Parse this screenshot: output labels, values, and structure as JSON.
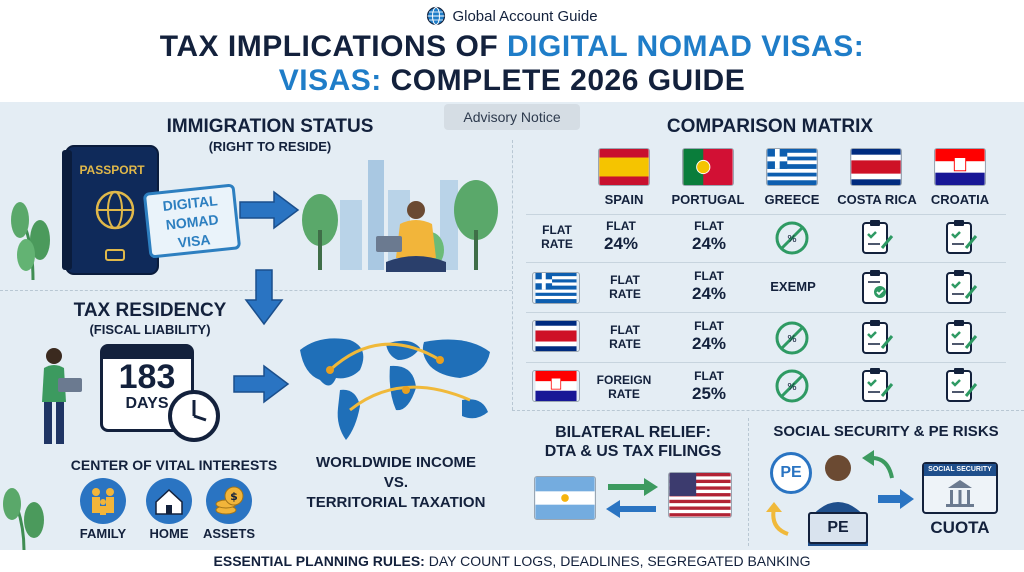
{
  "header": {
    "brand": "Global Account Guide",
    "title_line1_part1": "TAX IMPLICATIONS OF ",
    "title_line1_part2": "DIGITAL NOMAD VISAS:",
    "title_line2_part1": "VISAS:",
    "title_line2_part2": " COMPLETE 2026 GUIDE"
  },
  "advisory": "Advisory Notice",
  "immigration": {
    "title": "IMMIGRATION STATUS",
    "subtitle": "(RIGHT TO RESIDE)",
    "passport_label": "PASSPORT",
    "stamp_line1": "DIGITAL",
    "stamp_line2": "NOMAD",
    "stamp_line3": "VISA"
  },
  "tax_residency": {
    "title": "TAX RESIDENCY",
    "subtitle": "(FISCAL LIABILITY)",
    "days_number": "183",
    "days_label": "DAYS"
  },
  "vital_interests": {
    "title": "CENTER OF VITAL INTERESTS",
    "items": [
      "FAMILY",
      "HOME",
      "ASSETS"
    ]
  },
  "worldwide": {
    "line1": "WORLDWIDE INCOME",
    "line2": "VS.",
    "line3": "TERRITORIAL TAXATION"
  },
  "matrix": {
    "title": "COMPARISON MATRIX",
    "countries": [
      "SPAIN",
      "PORTUGAL",
      "GREECE",
      "COSTA RICA",
      "CROATIA"
    ],
    "rows": [
      {
        "label_line1": "FLAT",
        "label_line2": "RATE",
        "spain_line1": "FLAT",
        "spain_line2": "24%",
        "portugal_line1": "FLAT",
        "portugal_line2": "24%"
      },
      {
        "label_line1": "FLAT",
        "label_line2": "RATE",
        "portugal_line1": "FLAT",
        "portugal_line2": "24%",
        "greece": "EXEMP"
      },
      {
        "label_line1": "FLAT",
        "label_line2": "RATE",
        "portugal_line1": "FLAT",
        "portugal_line2": "24%"
      },
      {
        "label_line1": "FOREIGN",
        "label_line2": "RATE",
        "portugal_line1": "FLAT",
        "portugal_line2": "25%"
      }
    ]
  },
  "bilateral": {
    "line1": "BILATERAL RELIEF:",
    "line2": "DTA & US TAX FILINGS"
  },
  "social": {
    "title": "SOCIAL SECURITY & PE RISKS",
    "pe_badge": "PE",
    "pe_laptop": "PE",
    "card_label": "SOCIAL SECURITY",
    "cuota": "CUOTA"
  },
  "footer": {
    "bold": "ESSENTIAL PLANNING RULES:",
    "rest": " DAY COUNT LOGS, DEADLINES, SEGREGATED BANKING"
  },
  "colors": {
    "navy": "#13213c",
    "accent_blue": "#1f7dc8",
    "panel_bg": "#e4edf4",
    "check_green": "#2e9a63"
  }
}
